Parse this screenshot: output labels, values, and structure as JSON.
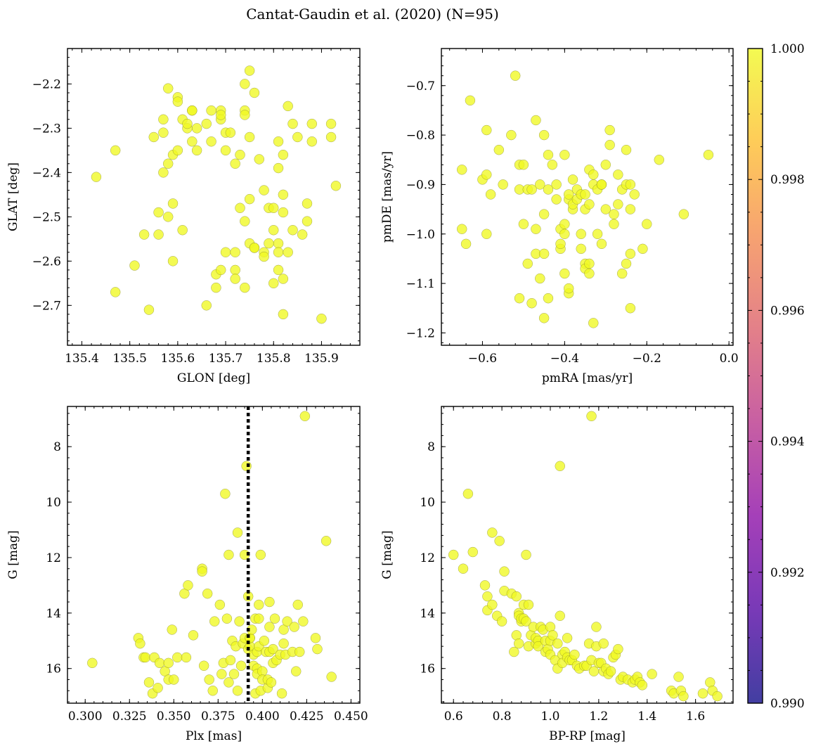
{
  "figure": {
    "title": "Cantat-Gaudin et al. (2020) (N=95)"
  },
  "colorbar": {
    "ticks": [
      "0.990",
      "0.992",
      "0.994",
      "0.996",
      "0.998",
      "1.000"
    ],
    "range": [
      0.99,
      1.0
    ],
    "colormap": [
      "#0d0887",
      "#5302a3",
      "#8b0aa5",
      "#b83289",
      "#db5c68",
      "#f48849",
      "#febd2a",
      "#f0f921"
    ],
    "alpha": 0.78
  },
  "chart_data": [
    {
      "type": "scatter",
      "name": "sky",
      "xlabel": "GLON [deg]",
      "ylabel": "GLAT [deg]",
      "xlim": [
        135.37,
        135.98
      ],
      "ylim": [
        -2.79,
        -2.12
      ],
      "invert_y": false,
      "xticks": [
        135.4,
        135.5,
        135.6,
        135.7,
        135.8,
        135.9
      ],
      "xtick_labels": [
        "135.4",
        "135.5",
        "135.6",
        "135.7",
        "135.8",
        "135.9"
      ],
      "yticks": [
        -2.7,
        -2.6,
        -2.5,
        -2.4,
        -2.3,
        -2.2
      ],
      "ytick_labels": [
        "−2.7",
        "−2.6",
        "−2.5",
        "−2.4",
        "−2.3",
        "−2.2"
      ],
      "x": [
        135.43,
        135.47,
        135.47,
        135.51,
        135.53,
        135.54,
        135.55,
        135.56,
        135.56,
        135.57,
        135.57,
        135.57,
        135.58,
        135.58,
        135.58,
        135.59,
        135.59,
        135.59,
        135.6,
        135.6,
        135.6,
        135.61,
        135.61,
        135.62,
        135.62,
        135.63,
        135.63,
        135.63,
        135.64,
        135.64,
        135.66,
        135.66,
        135.67,
        135.67,
        135.68,
        135.68,
        135.69,
        135.69,
        135.69,
        135.69,
        135.7,
        135.7,
        135.7,
        135.71,
        135.72,
        135.72,
        135.72,
        135.72,
        135.73,
        135.73,
        135.74,
        135.74,
        135.74,
        135.74,
        135.74,
        135.75,
        135.75,
        135.75,
        135.75,
        135.76,
        135.76,
        135.76,
        135.77,
        135.78,
        135.78,
        135.78,
        135.79,
        135.79,
        135.8,
        135.8,
        135.8,
        135.81,
        135.81,
        135.81,
        135.81,
        135.81,
        135.82,
        135.82,
        135.82,
        135.82,
        135.82,
        135.83,
        135.83,
        135.84,
        135.84,
        135.85,
        135.86,
        135.87,
        135.87,
        135.88,
        135.88,
        135.9,
        135.92,
        135.92,
        135.93
      ],
      "y": [
        -2.41,
        -2.35,
        -2.67,
        -2.61,
        -2.54,
        -2.71,
        -2.32,
        -2.49,
        -2.54,
        -2.4,
        -2.28,
        -2.31,
        -2.21,
        -2.38,
        -2.5,
        -2.36,
        -2.47,
        -2.6,
        -2.23,
        -2.24,
        -2.35,
        -2.28,
        -2.53,
        -2.3,
        -2.29,
        -2.33,
        -2.26,
        -2.26,
        -2.35,
        -2.3,
        -2.29,
        -2.7,
        -2.33,
        -2.26,
        -2.66,
        -2.63,
        -2.26,
        -2.28,
        -2.27,
        -2.62,
        -2.58,
        -2.31,
        -2.35,
        -2.31,
        -2.58,
        -2.62,
        -2.64,
        -2.38,
        -2.36,
        -2.48,
        -2.26,
        -2.66,
        -2.27,
        -2.2,
        -2.51,
        -2.56,
        -2.46,
        -2.32,
        -2.17,
        -2.22,
        -2.57,
        -2.57,
        -2.37,
        -2.58,
        -2.59,
        -2.44,
        -2.56,
        -2.48,
        -2.48,
        -2.53,
        -2.65,
        -2.56,
        -2.58,
        -2.62,
        -2.39,
        -2.33,
        -2.49,
        -2.45,
        -2.64,
        -2.72,
        -2.36,
        -2.58,
        -2.25,
        -2.29,
        -2.53,
        -2.32,
        -2.54,
        -2.47,
        -2.51,
        -2.33,
        -2.29,
        -2.73,
        -2.29,
        -2.32,
        -2.43
      ]
    },
    {
      "type": "scatter",
      "name": "proper-motion",
      "xlabel": "pmRA [mas/yr]",
      "ylabel": "pmDE [mas/yr]",
      "xlim": [
        -0.7,
        0.01
      ],
      "ylim": [
        -1.225,
        -0.625
      ],
      "invert_y": false,
      "xticks": [
        -0.6,
        -0.4,
        -0.2,
        0.0
      ],
      "xtick_labels": [
        "−0.6",
        "−0.4",
        "−0.2",
        "0.0"
      ],
      "yticks": [
        -1.2,
        -1.1,
        -1.0,
        -0.9,
        -0.8,
        -0.7
      ],
      "ytick_labels": [
        "−1.2",
        "−1.1",
        "−1.0",
        "−0.9",
        "−0.8",
        "−0.7"
      ],
      "x": [
        -0.65,
        -0.65,
        -0.64,
        -0.63,
        -0.6,
        -0.59,
        -0.59,
        -0.59,
        -0.58,
        -0.56,
        -0.55,
        -0.53,
        -0.52,
        -0.51,
        -0.51,
        -0.51,
        -0.5,
        -0.5,
        -0.49,
        -0.49,
        -0.48,
        -0.48,
        -0.47,
        -0.47,
        -0.47,
        -0.46,
        -0.46,
        -0.45,
        -0.45,
        -0.45,
        -0.45,
        -0.44,
        -0.44,
        -0.44,
        -0.43,
        -0.42,
        -0.42,
        -0.41,
        -0.41,
        -0.41,
        -0.4,
        -0.4,
        -0.4,
        -0.4,
        -0.39,
        -0.39,
        -0.39,
        -0.39,
        -0.38,
        -0.38,
        -0.38,
        -0.37,
        -0.37,
        -0.36,
        -0.36,
        -0.36,
        -0.35,
        -0.35,
        -0.35,
        -0.35,
        -0.34,
        -0.34,
        -0.34,
        -0.34,
        -0.33,
        -0.33,
        -0.33,
        -0.32,
        -0.32,
        -0.31,
        -0.31,
        -0.31,
        -0.3,
        -0.3,
        -0.29,
        -0.29,
        -0.28,
        -0.28,
        -0.27,
        -0.27,
        -0.26,
        -0.26,
        -0.25,
        -0.25,
        -0.25,
        -0.24,
        -0.24,
        -0.24,
        -0.24,
        -0.23,
        -0.21,
        -0.2,
        -0.17,
        -0.11,
        -0.05
      ],
      "y": [
        -0.87,
        -0.99,
        -1.02,
        -0.73,
        -0.89,
        -0.88,
        -1.0,
        -0.79,
        -0.92,
        -0.83,
        -0.9,
        -0.8,
        -0.68,
        -0.86,
        -0.91,
        -1.13,
        -0.98,
        -0.86,
        -1.06,
        -0.91,
        -0.91,
        -1.14,
        -0.77,
        -1.04,
        -0.99,
        -0.9,
        -1.09,
        -1.17,
        -0.96,
        -0.8,
        -1.04,
        -0.91,
        -1.13,
        -0.84,
        -0.86,
        -0.93,
        -0.9,
        -0.99,
        -1.03,
        -1.02,
        -1.0,
        -1.08,
        -0.98,
        -0.84,
        -0.93,
        -1.12,
        -0.92,
        -1.11,
        -0.95,
        -0.89,
        -0.94,
        -0.91,
        -0.93,
        -1.0,
        -0.92,
        -1.03,
        -1.06,
        -0.95,
        -0.92,
        -1.07,
        -0.87,
        -1.06,
        -1.08,
        -0.94,
        -0.88,
        -1.18,
        -0.9,
        -0.91,
        -1.0,
        -0.9,
        -0.9,
        -1.02,
        -0.86,
        -0.95,
        -0.79,
        -0.82,
        -0.98,
        -0.96,
        -0.88,
        -0.94,
        -1.08,
        -0.91,
        -0.83,
        -0.9,
        -1.06,
        -1.04,
        -0.9,
        -1.15,
        -0.95,
        -0.92,
        -1.03,
        -0.98,
        -0.85,
        -0.96,
        -0.84
      ]
    },
    {
      "type": "scatter",
      "name": "plx-mag",
      "xlabel": "Plx [mas]",
      "ylabel": "G [mag]",
      "xlim": [
        0.29,
        0.455
      ],
      "ylim": [
        17.25,
        6.55
      ],
      "invert_y": true,
      "vline": 0.392,
      "xticks": [
        0.3,
        0.325,
        0.35,
        0.375,
        0.4,
        0.425,
        0.45
      ],
      "xtick_labels": [
        "0.300",
        "0.325",
        "0.350",
        "0.375",
        "0.400",
        "0.425",
        "0.450"
      ],
      "yticks": [
        8,
        10,
        12,
        14,
        16
      ],
      "ytick_labels": [
        "8",
        "10",
        "12",
        "14",
        "16"
      ],
      "x": [
        0.304,
        0.33,
        0.331,
        0.333,
        0.334,
        0.336,
        0.338,
        0.339,
        0.341,
        0.342,
        0.345,
        0.347,
        0.347,
        0.349,
        0.35,
        0.352,
        0.356,
        0.357,
        0.358,
        0.361,
        0.366,
        0.366,
        0.367,
        0.369,
        0.37,
        0.372,
        0.373,
        0.376,
        0.377,
        0.378,
        0.379,
        0.38,
        0.381,
        0.381,
        0.382,
        0.383,
        0.384,
        0.385,
        0.386,
        0.386,
        0.387,
        0.388,
        0.389,
        0.39,
        0.39,
        0.391,
        0.392,
        0.392,
        0.393,
        0.393,
        0.393,
        0.394,
        0.395,
        0.395,
        0.396,
        0.396,
        0.397,
        0.397,
        0.397,
        0.398,
        0.398,
        0.398,
        0.399,
        0.399,
        0.4,
        0.4,
        0.401,
        0.402,
        0.403,
        0.403,
        0.404,
        0.404,
        0.404,
        0.405,
        0.406,
        0.406,
        0.407,
        0.408,
        0.41,
        0.411,
        0.412,
        0.412,
        0.413,
        0.414,
        0.417,
        0.418,
        0.419,
        0.42,
        0.421,
        0.423,
        0.424,
        0.43,
        0.431,
        0.436,
        0.439
      ],
      "y": [
        15.8,
        14.9,
        15.1,
        15.6,
        15.6,
        16.5,
        16.9,
        15.6,
        16.7,
        15.8,
        16.1,
        16.4,
        15.8,
        14.6,
        16.4,
        15.6,
        13.3,
        15.6,
        13.0,
        14.8,
        12.4,
        12.5,
        15.9,
        13.3,
        16.4,
        16.8,
        14.3,
        13.7,
        16.2,
        15.8,
        9.7,
        14.2,
        11.9,
        16.5,
        15.7,
        15.0,
        16.2,
        15.2,
        16.8,
        11.1,
        14.3,
        15.9,
        15.1,
        11.9,
        14.9,
        8.7,
        15.3,
        13.4,
        15.2,
        14.9,
        14.9,
        14.6,
        15.9,
        15.5,
        16.9,
        14.2,
        16.0,
        16.2,
        15.4,
        15.2,
        13.7,
        14.2,
        16.8,
        11.9,
        16.1,
        16.4,
        15.0,
        15.4,
        16.7,
        16.4,
        14.5,
        15.4,
        13.6,
        16.5,
        15.8,
        15.3,
        14.2,
        15.7,
        15.5,
        16.9,
        15.1,
        14.6,
        15.5,
        14.3,
        15.4,
        14.5,
        16.1,
        13.7,
        15.4,
        14.3,
        6.9,
        14.9,
        15.3,
        11.4,
        16.3
      ]
    },
    {
      "type": "scatter",
      "name": "cmd",
      "xlabel": "BP-RP [mag]",
      "ylabel": "G [mag]",
      "xlim": [
        0.55,
        1.755
      ],
      "ylim": [
        17.25,
        6.55
      ],
      "invert_y": true,
      "xticks": [
        0.6,
        0.8,
        1.0,
        1.2,
        1.4,
        1.6
      ],
      "xtick_labels": [
        "0.6",
        "0.8",
        "1.0",
        "1.2",
        "1.4",
        "1.6"
      ],
      "yticks": [
        8,
        10,
        12,
        14,
        16
      ],
      "ytick_labels": [
        "8",
        "10",
        "12",
        "14",
        "16"
      ],
      "x": [
        0.6,
        0.64,
        0.66,
        0.68,
        0.73,
        0.74,
        0.74,
        0.76,
        0.76,
        0.78,
        0.79,
        0.8,
        0.81,
        0.81,
        0.84,
        0.85,
        0.86,
        0.86,
        0.87,
        0.87,
        0.87,
        0.88,
        0.88,
        0.89,
        0.89,
        0.9,
        0.9,
        0.91,
        0.91,
        0.92,
        0.93,
        0.94,
        0.94,
        0.95,
        0.95,
        0.96,
        0.97,
        0.98,
        0.98,
        0.99,
        1.0,
        1.0,
        1.0,
        1.01,
        1.02,
        1.03,
        1.03,
        1.04,
        1.04,
        1.05,
        1.05,
        1.06,
        1.07,
        1.07,
        1.08,
        1.09,
        1.1,
        1.11,
        1.12,
        1.14,
        1.15,
        1.16,
        1.17,
        1.18,
        1.19,
        1.19,
        1.2,
        1.21,
        1.22,
        1.22,
        1.23,
        1.24,
        1.25,
        1.26,
        1.27,
        1.28,
        1.29,
        1.3,
        1.32,
        1.34,
        1.35,
        1.36,
        1.37,
        1.38,
        1.42,
        1.5,
        1.51,
        1.53,
        1.54,
        1.55,
        1.63,
        1.66,
        1.67,
        1.69,
        1.17
      ],
      "y": [
        11.9,
        12.4,
        9.7,
        11.8,
        13.0,
        13.4,
        13.9,
        11.1,
        13.7,
        14.1,
        11.4,
        14.3,
        12.5,
        13.2,
        13.3,
        15.4,
        13.4,
        14.8,
        15.1,
        14.0,
        14.1,
        14.3,
        14.2,
        14.2,
        13.7,
        14.3,
        11.9,
        15.2,
        13.7,
        14.8,
        14.5,
        15.1,
        14.9,
        15.0,
        15.2,
        14.5,
        14.6,
        15.4,
        15.0,
        15.3,
        15.5,
        14.5,
        15.0,
        14.8,
        15.7,
        15.1,
        16.0,
        14.1,
        8.7,
        15.5,
        15.8,
        15.4,
        15.6,
        14.9,
        15.7,
        15.7,
        15.5,
        15.9,
        16.0,
        15.9,
        15.9,
        15.1,
        15.7,
        16.1,
        15.2,
        14.5,
        15.8,
        15.8,
        15.1,
        16.1,
        16.0,
        16.2,
        16.1,
        15.6,
        15.5,
        15.3,
        16.4,
        16.3,
        16.4,
        16.5,
        16.4,
        16.3,
        16.5,
        16.6,
        16.2,
        16.8,
        16.9,
        16.3,
        16.8,
        17.0,
        16.9,
        16.5,
        16.8,
        17.0,
        6.9
      ]
    }
  ]
}
